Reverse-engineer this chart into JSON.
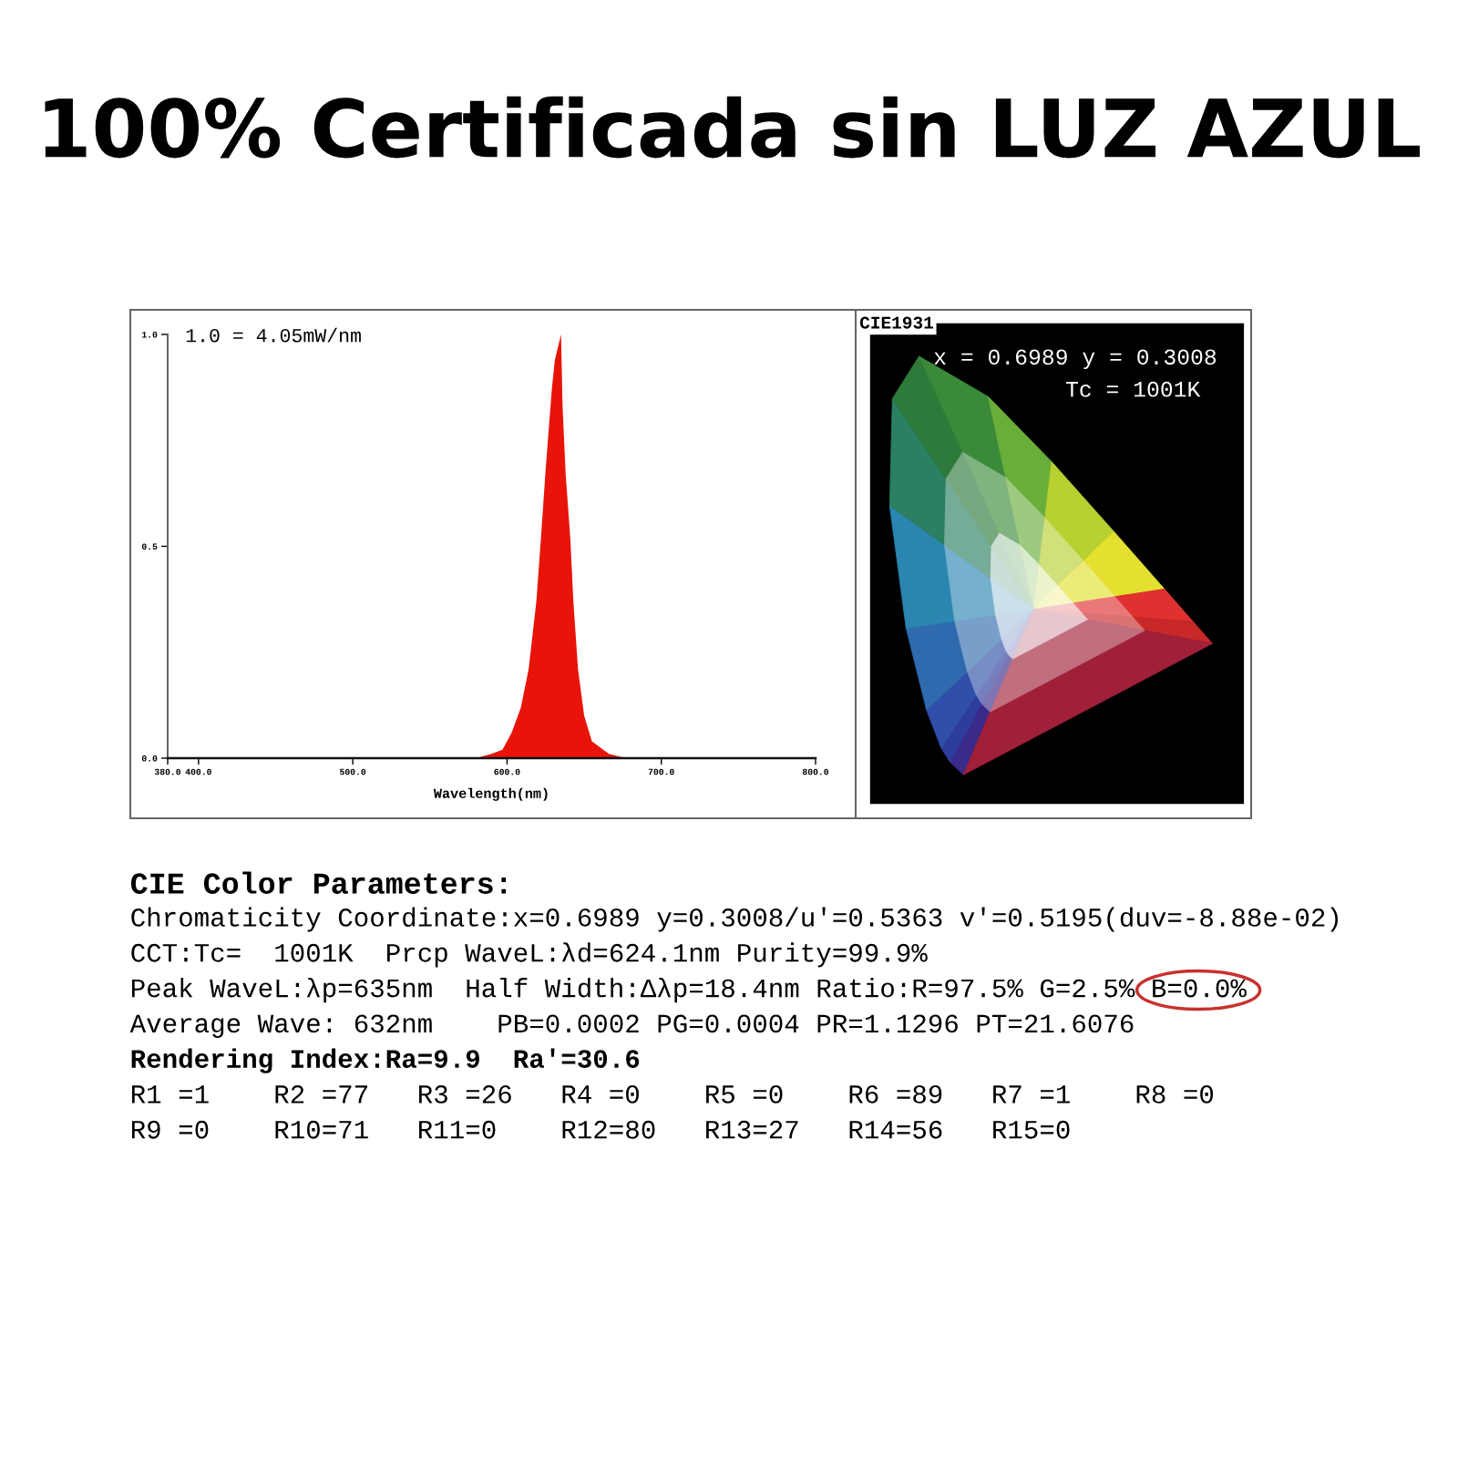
{
  "chart_data": [
    {
      "type": "area",
      "title": "100% Certificada sin LUZ AZUL",
      "xlabel": "Wavelength(nm)",
      "annotations": [
        "1.0 = 4.05mW/nm"
      ],
      "x": [
        380,
        500,
        580,
        590,
        597,
        603,
        609,
        614,
        619,
        622,
        625,
        629,
        631,
        635,
        636,
        638,
        641,
        643,
        646,
        650,
        655,
        666,
        677,
        700,
        800
      ],
      "values": [
        0,
        0,
        0,
        0.01,
        0.02,
        0.06,
        0.12,
        0.21,
        0.37,
        0.52,
        0.68,
        0.87,
        0.94,
        1.0,
        0.83,
        0.67,
        0.52,
        0.37,
        0.21,
        0.1,
        0.04,
        0.01,
        0,
        0,
        0
      ],
      "color": "#e8140a",
      "xlim": [
        380,
        800
      ],
      "ylim": [
        0,
        1.0
      ],
      "xticks": [
        {
          "value": 380,
          "label": "380.0"
        },
        {
          "value": 400,
          "label": "400.0"
        },
        {
          "value": 500,
          "label": "500.0"
        },
        {
          "value": 600,
          "label": "600.0"
        },
        {
          "value": 700,
          "label": "700.0"
        },
        {
          "value": 800,
          "label": "800.0"
        }
      ],
      "yticks": [
        {
          "value": 0,
          "label": "0.0"
        },
        {
          "value": 0.5,
          "label": "0.5"
        },
        {
          "value": 1.0,
          "label": "1.0"
        }
      ]
    },
    {
      "type": "other",
      "title": "CIE1931",
      "annotations": [
        "x = 0.6989 y = 0.3008",
        "Tc = 1001K"
      ]
    },
    {
      "type": "other",
      "title": "CIE Color Parameters:",
      "annotations": [
        "Chromaticity Coordinate:x=0.6989 y=0.3008/u'=0.5363 v'=0.5195(duv=-8.88e-02)",
        "CCT:Tc=  1001K  Prcp WaveL:λd=624.1nm Purity=99.9%",
        "Peak WaveL:λp=635nm  Half Width:Δλp=18.4nm Ratio:R=97.5% G=2.5% B=0.0%",
        "Average Wave: 632nm    PB=0.0002 PG=0.0004 PR=1.1296 PT=21.6076",
        "Rendering Index:Ra=9.9  Ra'=30.6",
        "R1 =1    R2 =77   R3 =26   R4 =0    R5 =0    R6 =89   R7 =1    R8 =0",
        "R9 =0    R10=71   R11=0    R12=80   R13=27   R14=56   R15=0"
      ]
    }
  ]
}
